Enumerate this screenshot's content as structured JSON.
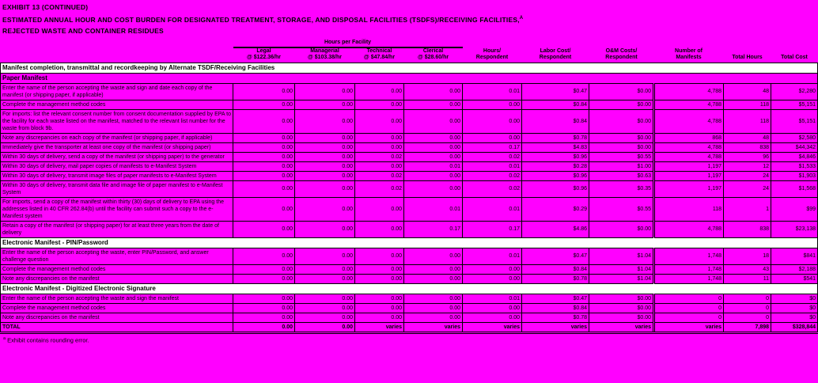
{
  "page": {
    "title_line1": "EXHIBIT 13 (CONTINUED)",
    "title_line2": "ESTIMATED ANNUAL HOUR AND COST BURDEN FOR DESIGNATED TREATMENT, STORAGE, AND DISPOSAL FACILITIES (TSDFS)/RECEIVING FACILITIES,",
    "title_marker": "a",
    "title_line3": "REJECTED WASTE AND CONTAINER RESIDUES",
    "footnote_marker": "a",
    "footnote_text": "Exhibit contains rounding error.",
    "colors": {
      "background": "#FF00FF",
      "section_row_background": "#FFFFFF",
      "grid_lines": "#000000",
      "text": "#000000"
    }
  },
  "table": {
    "span_header": "Hours per Facility",
    "labor_columns": [
      {
        "name": "Legal",
        "rate": "@ $122.36/hr"
      },
      {
        "name": "Managerial",
        "rate": "@ $103.38/hr"
      },
      {
        "name": "Technical",
        "rate": "@ $47.84/hr"
      },
      {
        "name": "Clerical",
        "rate": "@ $28.60/hr"
      }
    ],
    "other_columns": [
      "Hours/\nRespondent",
      "Labor Cost/\nRespondent",
      "O&M Costs/\nRespondent",
      "Number of\nManifests",
      "Total Hours",
      "Total Cost"
    ],
    "rows": [
      {
        "type": "section",
        "label": "Manifest completion, transmittal and recordkeeping by Alternate TSDF/Receiving Facilities"
      },
      {
        "type": "subsection",
        "label": "Paper Manifest"
      },
      {
        "type": "data",
        "label": "Enter the name of the person accepting the waste and sign and date each copy of the manifest (or shipping paper, if applicable)",
        "values": [
          "0.00",
          "0.00",
          "0.00",
          "0.00",
          "0.01",
          "$0.47",
          "$0.00",
          "4,788",
          "48",
          "$2,280"
        ]
      },
      {
        "type": "data",
        "label": "Complete the management method codes",
        "values": [
          "0.00",
          "0.00",
          "0.00",
          "0.00",
          "0.00",
          "$0.84",
          "$0.00",
          "4,788",
          "118",
          "$5,151"
        ]
      },
      {
        "type": "data",
        "label": "For imports: list the relevant consent number from consent documentation supplied by EPA to the facility for each waste listed on the manifest, matched to the relevant list number for the waste from block 9b.",
        "values": [
          "0.00",
          "0.00",
          "0.00",
          "0.00",
          "0.00",
          "$0.84",
          "$0.00",
          "4,788",
          "118",
          "$5,151"
        ]
      },
      {
        "type": "data",
        "label": "Note any discrepancies on each copy of the manifest (or shipping paper, if applicable)",
        "values": [
          "0.00",
          "0.00",
          "0.00",
          "0.00",
          "0.00",
          "$0.78",
          "$0.00",
          "868",
          "48",
          "$2,580"
        ]
      },
      {
        "type": "data",
        "label": "Immediately give the transporter at least one copy of the manifest (or shipping paper)",
        "values": [
          "0.00",
          "0.00",
          "0.00",
          "0.00",
          "0.17",
          "$4.83",
          "$0.00",
          "4,788",
          "838",
          "$44,342"
        ]
      },
      {
        "type": "data",
        "label": "Within 30 days of delivery, send a copy of the manifest (or shipping paper) to the generator",
        "values": [
          "0.00",
          "0.00",
          "0.02",
          "0.00",
          "0.02",
          "$0.96",
          "$0.55",
          "4,788",
          "96",
          "$4,846"
        ]
      },
      {
        "type": "data",
        "label": "Within 30 days of delivery, mail paper copies of manifests to e-Manifest System",
        "values": [
          "0.00",
          "0.00",
          "0.00",
          "0.01",
          "0.01",
          "$0.28",
          "$1.00",
          "1,197",
          "12",
          "$1,533"
        ]
      },
      {
        "type": "data",
        "label": "Within 30 days of delivery, transmit image files of paper manifests to e-Manifest System",
        "values": [
          "0.00",
          "0.00",
          "0.02",
          "0.00",
          "0.02",
          "$0.96",
          "$0.63",
          "1,197",
          "24",
          "$1,903"
        ]
      },
      {
        "type": "data",
        "label": "Within 30 days of delivery, transmit data file and image file of paper manifest to e-Manifest System",
        "values": [
          "0.00",
          "0.00",
          "0.02",
          "0.00",
          "0.02",
          "$0.96",
          "$0.35",
          "1,197",
          "24",
          "$1,568"
        ]
      },
      {
        "type": "data",
        "label": "For imports, send a copy of the manifest within thirty (30) days of delivery to EPA using the addresses listed in 40 CFR 262.84(b) until the facility can submit such a copy to the e-Manifest system",
        "values": [
          "0.00",
          "0.00",
          "0.00",
          "0.01",
          "0.01",
          "$0.29",
          "$0.55",
          "118",
          "1",
          "$99"
        ]
      },
      {
        "type": "data",
        "label": "Retain a copy of the manifest (or shipping paper) for at least three years from the date of delivery",
        "values": [
          "0.00",
          "0.00",
          "0.00",
          "0.17",
          "0.17",
          "$4.86",
          "$0.00",
          "4,788",
          "838",
          "$23,138"
        ]
      },
      {
        "type": "section",
        "label": "Electronic Manifest - PIN/Password"
      },
      {
        "type": "data",
        "label": "Enter the name of the person accepting the waste, enter PIN/Password, and answer challenge question",
        "values": [
          "0.00",
          "0.00",
          "0.00",
          "0.00",
          "0.01",
          "$0.47",
          "$1.04",
          "1,748",
          "18",
          "$841"
        ]
      },
      {
        "type": "data",
        "label": "Complete the management method codes",
        "values": [
          "0.00",
          "0.00",
          "0.00",
          "0.00",
          "0.00",
          "$0.84",
          "$1.04",
          "1,748",
          "43",
          "$2,188"
        ]
      },
      {
        "type": "data",
        "label": "Note any discrepancies on the manifest",
        "values": [
          "0.00",
          "0.00",
          "0.00",
          "0.00",
          "0.00",
          "$0.78",
          "$1.04",
          "1,748",
          "11",
          "$541"
        ]
      },
      {
        "type": "section",
        "label": "Electronic Manifest - Digitized Electronic Signature"
      },
      {
        "type": "data",
        "label": "Enter the name of the person accepting the waste and sign the manifest",
        "values": [
          "0.00",
          "0.00",
          "0.00",
          "0.00",
          "0.01",
          "$0.47",
          "$0.00",
          "0",
          "0",
          "$0"
        ]
      },
      {
        "type": "data",
        "label": "Complete the management method codes",
        "values": [
          "0.00",
          "0.00",
          "0.00",
          "0.00",
          "0.00",
          "$0.84",
          "$0.00",
          "0",
          "0",
          "$0"
        ]
      },
      {
        "type": "data",
        "label": "Note any discrepancies on the manifest",
        "values": [
          "0.00",
          "0.00",
          "0.00",
          "0.00",
          "0.00",
          "$0.78",
          "$0.00",
          "0",
          "0",
          "$0"
        ]
      },
      {
        "type": "total",
        "label": "TOTAL",
        "values": [
          "0.00",
          "0.00",
          "varies",
          "varies",
          "varies",
          "varies",
          "varies",
          "varies",
          "7,898",
          "$328,844"
        ]
      }
    ]
  }
}
